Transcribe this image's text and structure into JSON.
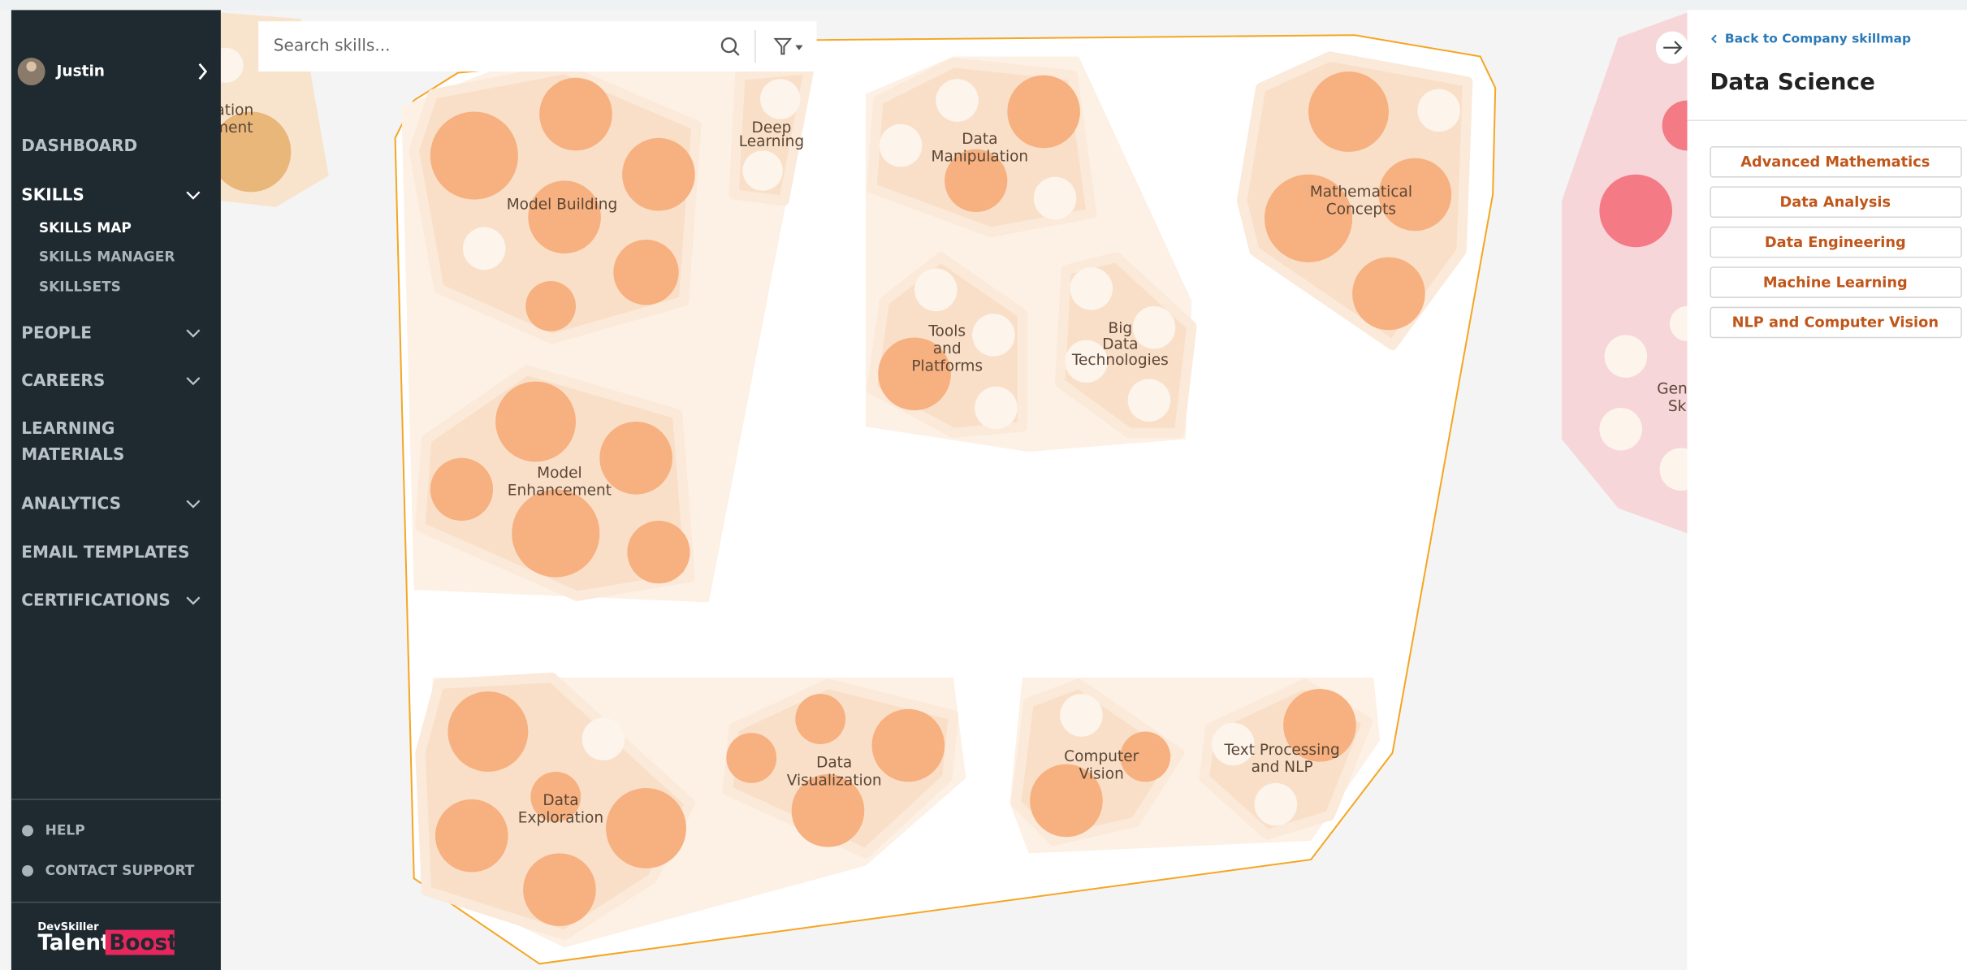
{
  "sidebar": {
    "user": "Justin",
    "nav": [
      "DASHBOARD",
      "SKILLS",
      "PEOPLE",
      "CAREERS",
      "LEARNING",
      "MATERIALS",
      "ANALYTICS",
      "EMAIL TEMPLATES",
      "CERTIFICATIONS"
    ],
    "sub_nav": [
      "SKILLS MAP",
      "SKILLS MANAGER",
      "SKILLSETS"
    ],
    "help": "HELP",
    "contact": "CONTACT SUPPORT",
    "brand_top": "DevSkiller",
    "brand_left": "Talent",
    "brand_right": "Boost"
  },
  "search": {
    "placeholder": "Search skills..."
  },
  "map": {
    "clusters": [
      {
        "lines": [
          "Model Building"
        ]
      },
      {
        "lines": [
          "Deep",
          "Learning"
        ]
      },
      {
        "lines": [
          "Data",
          "Manipulation"
        ]
      },
      {
        "lines": [
          "Tools",
          "and",
          "Platforms"
        ]
      },
      {
        "lines": [
          "Big",
          "Data",
          "Technologies"
        ]
      },
      {
        "lines": [
          "Mathematical",
          "Concepts"
        ]
      },
      {
        "lines": [
          "Model",
          "Enhancement"
        ]
      },
      {
        "lines": [
          "Data",
          "Exploration"
        ]
      },
      {
        "lines": [
          "Data",
          "Visualization"
        ]
      },
      {
        "lines": [
          "Computer",
          "Vision"
        ]
      },
      {
        "lines": [
          "Text Processing",
          "and NLP"
        ]
      }
    ],
    "partial_labels": [
      "ation",
      "ment",
      "Gen",
      "Sk"
    ]
  },
  "panel": {
    "back": "Back to Company skillmap",
    "title": "Data Science",
    "items": [
      "Advanced Mathematics",
      "Data Analysis",
      "Data Engineering",
      "Machine Learning",
      "NLP and Computer Vision"
    ]
  }
}
